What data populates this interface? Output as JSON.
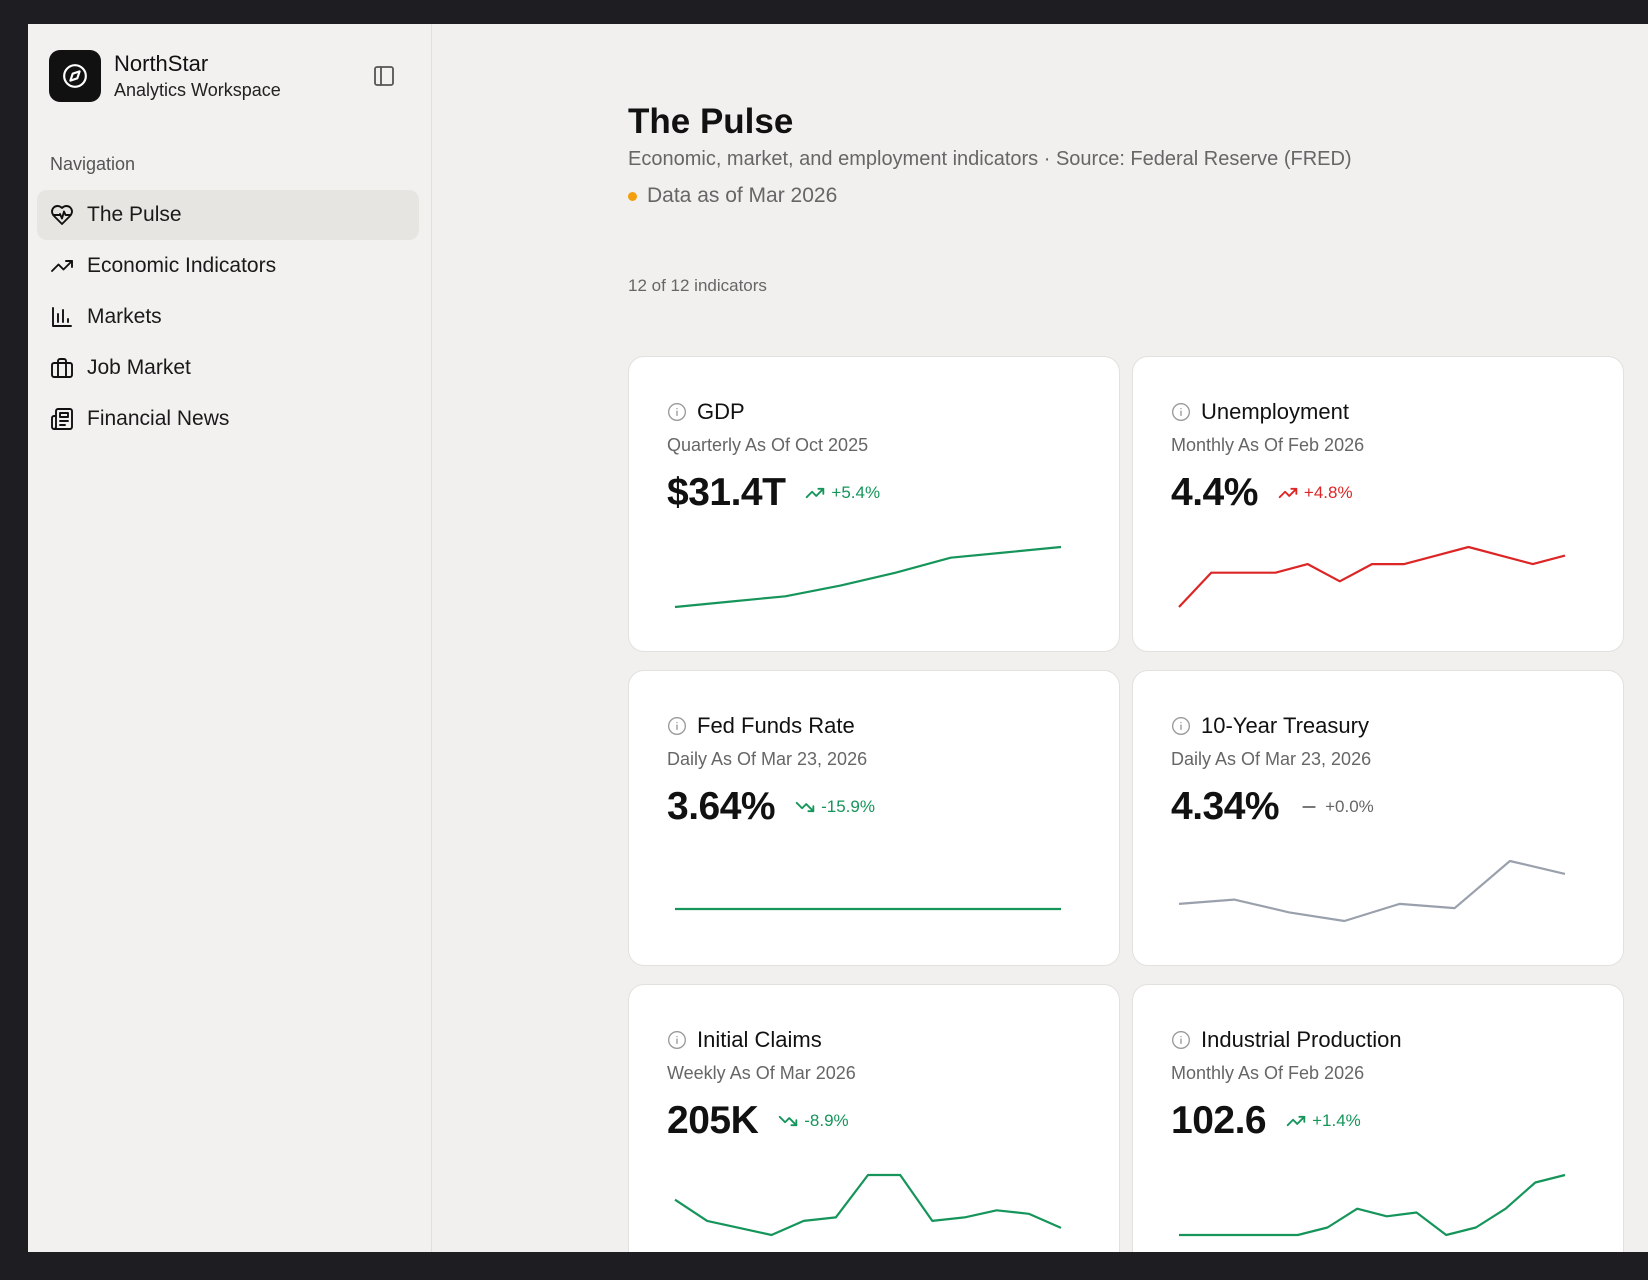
{
  "brand": {
    "name": "NorthStar",
    "subtitle": "Analytics Workspace"
  },
  "sidebar": {
    "heading": "Navigation",
    "items": [
      {
        "label": "The Pulse",
        "icon": "heart-pulse-icon",
        "active": true
      },
      {
        "label": "Economic Indicators",
        "icon": "trending-up-icon",
        "active": false
      },
      {
        "label": "Markets",
        "icon": "bar-chart-icon",
        "active": false
      },
      {
        "label": "Job Market",
        "icon": "briefcase-icon",
        "active": false
      },
      {
        "label": "Financial News",
        "icon": "newspaper-icon",
        "active": false
      }
    ]
  },
  "page": {
    "title": "The Pulse",
    "subtitle": "Economic, market, and employment indicators · Source: Federal Reserve (FRED)",
    "as_of": "Data as of Mar 2026",
    "count": "12 of 12 indicators"
  },
  "colors": {
    "up_good": "#16955b",
    "up_bad": "#dc2626",
    "neutral": "#9aa1ad",
    "accent_dot": "#f59e0b"
  },
  "cards": [
    {
      "title": "GDP",
      "freq": "Quarterly As Of Oct 2025",
      "value": "$31.4T",
      "delta": "+5.4%",
      "trend": "up",
      "tone": "good",
      "series": [
        0,
        0.5,
        1,
        2,
        3.2,
        4.6,
        5.1,
        5.6
      ]
    },
    {
      "title": "Unemployment",
      "freq": "Monthly As Of Feb 2026",
      "value": "4.4%",
      "delta": "+4.8%",
      "trend": "up",
      "tone": "bad",
      "series": [
        4.0,
        4.2,
        4.2,
        4.2,
        4.25,
        4.15,
        4.25,
        4.25,
        4.3,
        4.35,
        4.3,
        4.25,
        4.3
      ]
    },
    {
      "title": "Fed Funds Rate",
      "freq": "Daily As Of Mar 23, 2026",
      "value": "3.64%",
      "delta": "-15.9%",
      "trend": "down",
      "tone": "good",
      "series": [
        3.64,
        3.64,
        3.64,
        3.64,
        3.64,
        3.64,
        3.64,
        3.64
      ]
    },
    {
      "title": "10-Year Treasury",
      "freq": "Daily As Of Mar 23, 2026",
      "value": "4.34%",
      "delta": "+0.0%",
      "trend": "flat",
      "tone": "neutral",
      "series": [
        4.1,
        4.11,
        4.08,
        4.06,
        4.1,
        4.09,
        4.2,
        4.17
      ]
    },
    {
      "title": "Initial Claims",
      "freq": "Weekly As Of Mar 2026",
      "value": "205K",
      "delta": "-8.9%",
      "trend": "down",
      "tone": "good",
      "series": [
        218,
        212,
        210,
        208,
        212,
        213,
        225,
        225,
        212,
        213,
        215,
        214,
        210
      ]
    },
    {
      "title": "Industrial Production",
      "freq": "Monthly As Of Feb 2026",
      "value": "102.6",
      "delta": "+1.4%",
      "trend": "up",
      "tone": "good",
      "series": [
        101.6,
        101.6,
        101.6,
        101.6,
        101.6,
        101.7,
        101.95,
        101.85,
        101.9,
        101.6,
        101.7,
        101.95,
        102.3,
        102.4
      ]
    }
  ]
}
